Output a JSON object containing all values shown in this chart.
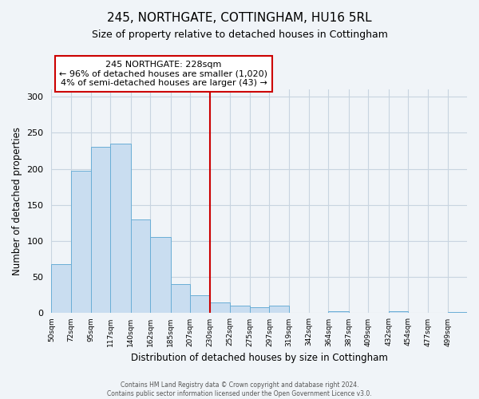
{
  "title": "245, NORTHGATE, COTTINGHAM, HU16 5RL",
  "subtitle": "Size of property relative to detached houses in Cottingham",
  "xlabel": "Distribution of detached houses by size in Cottingham",
  "ylabel": "Number of detached properties",
  "bin_labels": [
    "50sqm",
    "72sqm",
    "95sqm",
    "117sqm",
    "140sqm",
    "162sqm",
    "185sqm",
    "207sqm",
    "230sqm",
    "252sqm",
    "275sqm",
    "297sqm",
    "319sqm",
    "342sqm",
    "364sqm",
    "387sqm",
    "409sqm",
    "432sqm",
    "454sqm",
    "477sqm",
    "499sqm"
  ],
  "bar_heights": [
    68,
    197,
    230,
    235,
    130,
    105,
    40,
    25,
    15,
    10,
    8,
    10,
    0,
    0,
    3,
    0,
    0,
    3,
    0,
    0,
    2
  ],
  "bar_color": "#c9ddf0",
  "bar_edge_color": "#6aaed6",
  "vline_color": "#cc0000",
  "ylim": [
    0,
    310
  ],
  "yticks": [
    0,
    50,
    100,
    150,
    200,
    250,
    300
  ],
  "annotation_text": "245 NORTHGATE: 228sqm\n← 96% of detached houses are smaller (1,020)\n4% of semi-detached houses are larger (43) →",
  "annotation_box_color": "#cc0000",
  "footer_line1": "Contains HM Land Registry data © Crown copyright and database right 2024.",
  "footer_line2": "Contains public sector information licensed under the Open Government Licence v3.0.",
  "bg_color": "#f0f4f8",
  "grid_color": "#c8d4e0",
  "bin_edges": [
    50,
    72,
    95,
    117,
    140,
    162,
    185,
    207,
    230,
    252,
    275,
    297,
    319,
    342,
    364,
    387,
    409,
    432,
    454,
    477,
    499,
    521
  ]
}
